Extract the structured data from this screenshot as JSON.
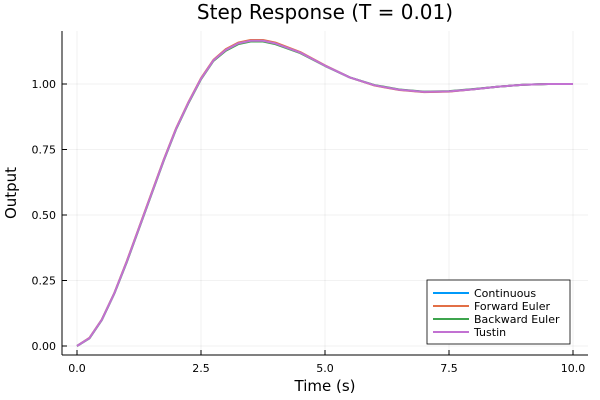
{
  "chart_data": {
    "type": "line",
    "title": "Step Response (T = 0.01)",
    "xlabel": "Time (s)",
    "ylabel": "Output",
    "xlim": [
      -0.3,
      10.3
    ],
    "ylim": [
      -0.03,
      1.2
    ],
    "xticks": [
      0.0,
      2.5,
      5.0,
      7.5,
      10.0
    ],
    "xtick_labels": [
      "0.0",
      "2.5",
      "5.0",
      "7.5",
      "10.0"
    ],
    "yticks": [
      0.0,
      0.25,
      0.5,
      0.75,
      1.0
    ],
    "ytick_labels": [
      "0.00",
      "0.25",
      "0.50",
      "0.75",
      "1.00"
    ],
    "grid": true,
    "legend_position": "bottom-right",
    "series": [
      {
        "name": "Continuous",
        "color": "#009AFA",
        "x": [
          0,
          0.25,
          0.5,
          0.75,
          1.0,
          1.25,
          1.5,
          1.75,
          2.0,
          2.25,
          2.5,
          2.75,
          3.0,
          3.25,
          3.5,
          3.75,
          4.0,
          4.5,
          5.0,
          5.5,
          6.0,
          6.5,
          7.0,
          7.5,
          8.0,
          8.5,
          9.0,
          9.5,
          10.0
        ],
        "y": [
          0.0,
          0.03,
          0.1,
          0.2,
          0.32,
          0.45,
          0.58,
          0.71,
          0.83,
          0.93,
          1.02,
          1.09,
          1.13,
          1.155,
          1.165,
          1.165,
          1.155,
          1.12,
          1.07,
          1.025,
          0.995,
          0.978,
          0.97,
          0.972,
          0.98,
          0.99,
          0.997,
          1.0,
          1.0
        ]
      },
      {
        "name": "Forward Euler",
        "color": "#E26F46",
        "x": [
          0,
          0.25,
          0.5,
          0.75,
          1.0,
          1.25,
          1.5,
          1.75,
          2.0,
          2.25,
          2.5,
          2.75,
          3.0,
          3.25,
          3.5,
          3.75,
          4.0,
          4.5,
          5.0,
          5.5,
          6.0,
          6.5,
          7.0,
          7.5,
          8.0,
          8.5,
          9.0,
          9.5,
          10.0
        ],
        "y": [
          0.0,
          0.031,
          0.101,
          0.201,
          0.322,
          0.452,
          0.582,
          0.712,
          0.832,
          0.932,
          1.022,
          1.092,
          1.133,
          1.158,
          1.168,
          1.168,
          1.158,
          1.122,
          1.071,
          1.025,
          0.994,
          0.977,
          0.969,
          0.971,
          0.98,
          0.99,
          0.997,
          1.0,
          1.0
        ]
      },
      {
        "name": "Backward Euler",
        "color": "#3DA44D",
        "x": [
          0,
          0.25,
          0.5,
          0.75,
          1.0,
          1.25,
          1.5,
          1.75,
          2.0,
          2.25,
          2.5,
          2.75,
          3.0,
          3.25,
          3.5,
          3.75,
          4.0,
          4.5,
          5.0,
          5.5,
          6.0,
          6.5,
          7.0,
          7.5,
          8.0,
          8.5,
          9.0,
          9.5,
          10.0
        ],
        "y": [
          0.0,
          0.029,
          0.099,
          0.199,
          0.318,
          0.448,
          0.578,
          0.708,
          0.828,
          0.928,
          1.018,
          1.088,
          1.127,
          1.152,
          1.162,
          1.162,
          1.152,
          1.118,
          1.069,
          1.025,
          0.996,
          0.979,
          0.971,
          0.973,
          0.981,
          0.99,
          0.997,
          1.0,
          1.0
        ]
      },
      {
        "name": "Tustin",
        "color": "#C271D2",
        "x": [
          0,
          0.25,
          0.5,
          0.75,
          1.0,
          1.25,
          1.5,
          1.75,
          2.0,
          2.25,
          2.5,
          2.75,
          3.0,
          3.25,
          3.5,
          3.75,
          4.0,
          4.5,
          5.0,
          5.5,
          6.0,
          6.5,
          7.0,
          7.5,
          8.0,
          8.5,
          9.0,
          9.5,
          10.0
        ],
        "y": [
          0.0,
          0.03,
          0.1,
          0.2,
          0.32,
          0.45,
          0.58,
          0.71,
          0.83,
          0.93,
          1.02,
          1.09,
          1.13,
          1.155,
          1.165,
          1.165,
          1.155,
          1.12,
          1.07,
          1.025,
          0.995,
          0.978,
          0.97,
          0.972,
          0.98,
          0.99,
          0.997,
          1.0,
          1.0
        ]
      }
    ]
  }
}
